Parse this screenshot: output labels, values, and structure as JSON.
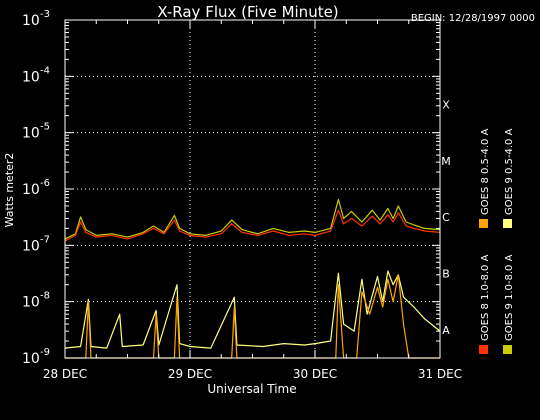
{
  "chart_data": {
    "type": "line",
    "title": "X-Ray Flux (Five Minute)",
    "begin_label": "BEGIN: 12/28/1997 0000",
    "xlabel": "Universal Time",
    "ylabel": "Watts meter2",
    "y_scale": "log",
    "ylim": [
      1e-09,
      0.001
    ],
    "xlim": [
      "1997-12-28T00:00",
      "1997-12-31T00:00"
    ],
    "x_ticks": [
      "28 DEC",
      "29 DEC",
      "30 DEC",
      "31 DEC"
    ],
    "y_tick_bases": [
      "10",
      "10",
      "10",
      "10",
      "10",
      "10",
      "10"
    ],
    "y_tick_exponents": [
      "-9",
      "-8",
      "-7",
      "-6",
      "-5",
      "-4",
      "-3"
    ],
    "flare_classes": [
      "A",
      "B",
      "C",
      "M",
      "X"
    ],
    "grid": true,
    "series": [
      {
        "name": "GOES 8 1.0-8.0 A",
        "color": "#ff3300",
        "points": [
          [
            "1997-12-28T00:00",
            1.2e-07
          ],
          [
            "1997-12-28T02:00",
            1.5e-07
          ],
          [
            "1997-12-28T03:00",
            2.6e-07
          ],
          [
            "1997-12-28T04:00",
            1.7e-07
          ],
          [
            "1997-12-28T06:00",
            1.4e-07
          ],
          [
            "1997-12-28T09:00",
            1.5e-07
          ],
          [
            "1997-12-28T12:00",
            1.3e-07
          ],
          [
            "1997-12-28T15:00",
            1.6e-07
          ],
          [
            "1997-12-28T17:00",
            2e-07
          ],
          [
            "1997-12-28T19:00",
            1.6e-07
          ],
          [
            "1997-12-28T21:00",
            2.8e-07
          ],
          [
            "1997-12-28T22:00",
            1.8e-07
          ],
          [
            "1997-12-29T00:00",
            1.5e-07
          ],
          [
            "1997-12-29T03:00",
            1.4e-07
          ],
          [
            "1997-12-29T06:00",
            1.6e-07
          ],
          [
            "1997-12-29T08:00",
            2.4e-07
          ],
          [
            "1997-12-29T10:00",
            1.7e-07
          ],
          [
            "1997-12-29T13:00",
            1.5e-07
          ],
          [
            "1997-12-29T16:00",
            1.8e-07
          ],
          [
            "1997-12-29T19:00",
            1.5e-07
          ],
          [
            "1997-12-29T22:00",
            1.6e-07
          ],
          [
            "1997-12-30T00:00",
            1.5e-07
          ],
          [
            "1997-12-30T03:00",
            1.8e-07
          ],
          [
            "1997-12-30T04:30",
            4.2e-07
          ],
          [
            "1997-12-30T05:30",
            2.4e-07
          ],
          [
            "1997-12-30T07:00",
            3e-07
          ],
          [
            "1997-12-30T09:00",
            2.2e-07
          ],
          [
            "1997-12-30T11:00",
            3.3e-07
          ],
          [
            "1997-12-30T12:30",
            2.4e-07
          ],
          [
            "1997-12-30T14:00",
            3.5e-07
          ],
          [
            "1997-12-30T15:00",
            2.6e-07
          ],
          [
            "1997-12-30T16:00",
            3.8e-07
          ],
          [
            "1997-12-30T17:30",
            2.2e-07
          ],
          [
            "1997-12-30T19:00",
            2e-07
          ],
          [
            "1997-12-30T21:00",
            1.8e-07
          ],
          [
            "1997-12-31T00:00",
            1.7e-07
          ]
        ]
      },
      {
        "name": "GOES 8 0.5-4.0 A",
        "color": "#ffa500",
        "points": [
          [
            "1997-12-28T00:00",
            1e-09
          ],
          [
            "1997-12-28T04:00",
            1e-09
          ],
          [
            "1997-12-28T04:30",
            1e-08
          ],
          [
            "1997-12-28T05:00",
            1e-09
          ],
          [
            "1997-12-28T10:00",
            1e-09
          ],
          [
            "1997-12-28T17:00",
            1e-09
          ],
          [
            "1997-12-28T17:30",
            6e-09
          ],
          [
            "1997-12-28T18:00",
            1e-09
          ],
          [
            "1997-12-28T21:00",
            1e-09
          ],
          [
            "1997-12-28T21:30",
            1.2e-08
          ],
          [
            "1997-12-28T22:00",
            1e-09
          ],
          [
            "1997-12-29T08:00",
            1e-09
          ],
          [
            "1997-12-29T08:30",
            8e-09
          ],
          [
            "1997-12-29T09:00",
            1e-09
          ],
          [
            "1997-12-30T02:00",
            1e-09
          ],
          [
            "1997-12-30T04:00",
            1e-09
          ],
          [
            "1997-12-30T04:30",
            2e-08
          ],
          [
            "1997-12-30T05:30",
            1e-09
          ],
          [
            "1997-12-30T08:00",
            1e-09
          ],
          [
            "1997-12-30T09:00",
            1.5e-08
          ],
          [
            "1997-12-30T10:30",
            6e-09
          ],
          [
            "1997-12-30T12:00",
            1.8e-08
          ],
          [
            "1997-12-30T13:00",
            8e-09
          ],
          [
            "1997-12-30T14:00",
            2.5e-08
          ],
          [
            "1997-12-30T15:00",
            1e-08
          ],
          [
            "1997-12-30T16:00",
            3e-08
          ],
          [
            "1997-12-30T17:00",
            4e-09
          ],
          [
            "1997-12-30T18:00",
            1e-09
          ],
          [
            "1997-12-31T00:00",
            1e-09
          ]
        ]
      },
      {
        "name": "GOES 9 1.0-8.0 A",
        "color": "#cccc00",
        "points": [
          [
            "1997-12-28T00:00",
            1.3e-07
          ],
          [
            "1997-12-28T02:00",
            1.6e-07
          ],
          [
            "1997-12-28T03:00",
            3.2e-07
          ],
          [
            "1997-12-28T04:00",
            1.9e-07
          ],
          [
            "1997-12-28T06:00",
            1.5e-07
          ],
          [
            "1997-12-28T09:00",
            1.6e-07
          ],
          [
            "1997-12-28T12:00",
            1.4e-07
          ],
          [
            "1997-12-28T15:00",
            1.7e-07
          ],
          [
            "1997-12-28T17:00",
            2.2e-07
          ],
          [
            "1997-12-28T19:00",
            1.7e-07
          ],
          [
            "1997-12-28T21:00",
            3.4e-07
          ],
          [
            "1997-12-28T22:00",
            2e-07
          ],
          [
            "1997-12-29T00:00",
            1.6e-07
          ],
          [
            "1997-12-29T03:00",
            1.5e-07
          ],
          [
            "1997-12-29T06:00",
            1.8e-07
          ],
          [
            "1997-12-29T08:00",
            2.8e-07
          ],
          [
            "1997-12-29T10:00",
            1.9e-07
          ],
          [
            "1997-12-29T13:00",
            1.6e-07
          ],
          [
            "1997-12-29T16:00",
            2e-07
          ],
          [
            "1997-12-29T19:00",
            1.7e-07
          ],
          [
            "1997-12-29T22:00",
            1.8e-07
          ],
          [
            "1997-12-30T00:00",
            1.7e-07
          ],
          [
            "1997-12-30T03:00",
            2e-07
          ],
          [
            "1997-12-30T04:30",
            6.5e-07
          ],
          [
            "1997-12-30T05:30",
            3e-07
          ],
          [
            "1997-12-30T07:00",
            4e-07
          ],
          [
            "1997-12-30T09:00",
            2.6e-07
          ],
          [
            "1997-12-30T11:00",
            4.2e-07
          ],
          [
            "1997-12-30T12:30",
            2.8e-07
          ],
          [
            "1997-12-30T14:00",
            4.5e-07
          ],
          [
            "1997-12-30T15:00",
            3e-07
          ],
          [
            "1997-12-30T16:00",
            5e-07
          ],
          [
            "1997-12-30T17:30",
            2.6e-07
          ],
          [
            "1997-12-30T19:00",
            2.3e-07
          ],
          [
            "1997-12-30T21:00",
            2e-07
          ],
          [
            "1997-12-31T00:00",
            1.9e-07
          ]
        ]
      },
      {
        "name": "GOES 9 0.5-4.0 A",
        "color": "#ffff80",
        "points": [
          [
            "1997-12-28T00:00",
            1.5e-09
          ],
          [
            "1997-12-28T03:00",
            1.6e-09
          ],
          [
            "1997-12-28T04:30",
            1.1e-08
          ],
          [
            "1997-12-28T05:00",
            1.6e-09
          ],
          [
            "1997-12-28T08:00",
            1.5e-09
          ],
          [
            "1997-12-28T10:30",
            6e-09
          ],
          [
            "1997-12-28T11:00",
            1.6e-09
          ],
          [
            "1997-12-28T15:00",
            1.7e-09
          ],
          [
            "1997-12-28T17:30",
            7e-09
          ],
          [
            "1997-12-28T18:00",
            1.7e-09
          ],
          [
            "1997-12-28T21:30",
            2e-08
          ],
          [
            "1997-12-28T22:00",
            1.8e-09
          ],
          [
            "1997-12-29T00:00",
            1.6e-09
          ],
          [
            "1997-12-29T04:00",
            1.5e-09
          ],
          [
            "1997-12-29T08:30",
            1.2e-08
          ],
          [
            "1997-12-29T09:00",
            1.7e-09
          ],
          [
            "1997-12-29T14:00",
            1.6e-09
          ],
          [
            "1997-12-29T18:00",
            1.8e-09
          ],
          [
            "1997-12-29T22:00",
            1.7e-09
          ],
          [
            "1997-12-30T00:00",
            1.8e-09
          ],
          [
            "1997-12-30T03:00",
            2e-09
          ],
          [
            "1997-12-30T04:30",
            3.2e-08
          ],
          [
            "1997-12-30T05:30",
            4e-09
          ],
          [
            "1997-12-30T07:30",
            3e-09
          ],
          [
            "1997-12-30T09:00",
            2.5e-08
          ],
          [
            "1997-12-30T10:00",
            6e-09
          ],
          [
            "1997-12-30T12:00",
            2.8e-08
          ],
          [
            "1997-12-30T13:00",
            1e-08
          ],
          [
            "1997-12-30T14:00",
            3.5e-08
          ],
          [
            "1997-12-30T15:00",
            2e-08
          ],
          [
            "1997-12-30T16:00",
            3e-08
          ],
          [
            "1997-12-30T17:00",
            1.2e-08
          ],
          [
            "1997-12-30T19:00",
            8e-09
          ],
          [
            "1997-12-30T21:00",
            5e-09
          ],
          [
            "1997-12-31T00:00",
            3e-09
          ]
        ]
      }
    ]
  }
}
